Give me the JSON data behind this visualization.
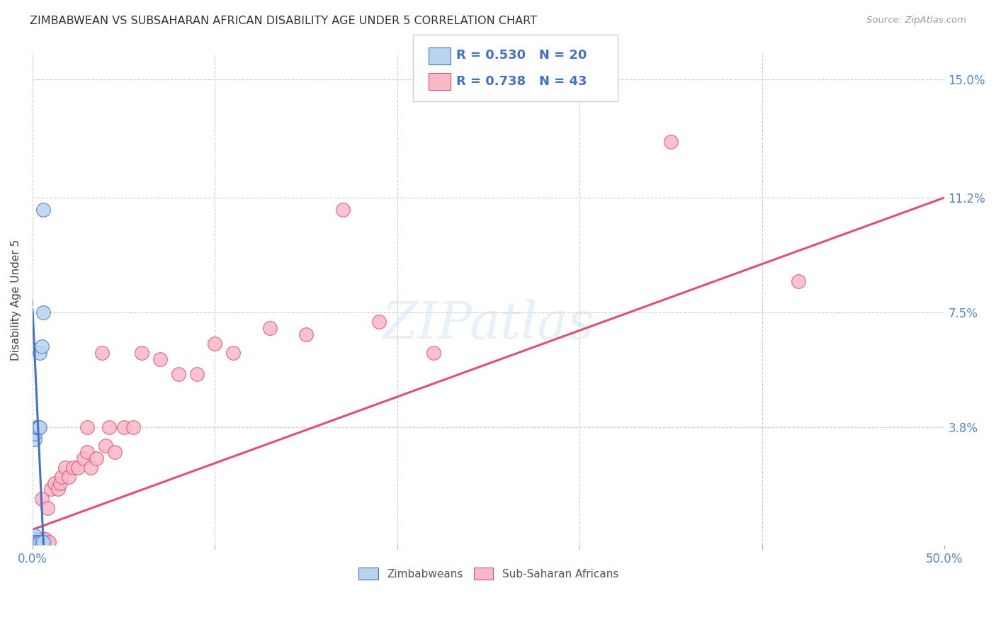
{
  "title": "ZIMBABWEAN VS SUBSAHARAN AFRICAN DISABILITY AGE UNDER 5 CORRELATION CHART",
  "source": "Source: ZipAtlas.com",
  "ylabel": "Disability Age Under 5",
  "xlim": [
    0,
    0.5
  ],
  "ylim": [
    0,
    0.158
  ],
  "xtick_positions": [
    0.0,
    0.1,
    0.2,
    0.3,
    0.4,
    0.5
  ],
  "ytick_positions": [
    0.0,
    0.038,
    0.075,
    0.112,
    0.15
  ],
  "ytick_labels": [
    "",
    "3.8%",
    "7.5%",
    "11.2%",
    "15.0%"
  ],
  "grid_color": "#cccccc",
  "background_color": "#ffffff",
  "zimbabwean_color": "#b8d4ef",
  "subsaharan_color": "#f9b8c8",
  "trend_blue": "#4472c4",
  "trend_pink": "#e05070",
  "R_zim": 0.53,
  "N_zim": 20,
  "R_sub": 0.738,
  "N_sub": 43,
  "legend_entries": [
    "Zimbabweans",
    "Sub-Saharan Africans"
  ],
  "zim_x": [
    0.001,
    0.001,
    0.001,
    0.001,
    0.001,
    0.001,
    0.001,
    0.001,
    0.002,
    0.002,
    0.003,
    0.003,
    0.004,
    0.004,
    0.004,
    0.005,
    0.005,
    0.006,
    0.006,
    0.006
  ],
  "zim_y": [
    0.001,
    0.001,
    0.001,
    0.002,
    0.003,
    0.034,
    0.036,
    0.001,
    0.001,
    0.038,
    0.038,
    0.001,
    0.001,
    0.038,
    0.062,
    0.064,
    0.001,
    0.075,
    0.108,
    0.001
  ],
  "sub_x": [
    0.001,
    0.002,
    0.003,
    0.004,
    0.005,
    0.005,
    0.006,
    0.007,
    0.008,
    0.009,
    0.01,
    0.012,
    0.014,
    0.015,
    0.016,
    0.018,
    0.02,
    0.022,
    0.025,
    0.028,
    0.03,
    0.03,
    0.032,
    0.035,
    0.038,
    0.04,
    0.042,
    0.045,
    0.05,
    0.055,
    0.06,
    0.07,
    0.08,
    0.09,
    0.1,
    0.11,
    0.13,
    0.15,
    0.17,
    0.19,
    0.22,
    0.35,
    0.42
  ],
  "sub_y": [
    0.001,
    0.001,
    0.001,
    0.002,
    0.001,
    0.015,
    0.002,
    0.002,
    0.012,
    0.001,
    0.018,
    0.02,
    0.018,
    0.02,
    0.022,
    0.025,
    0.022,
    0.025,
    0.025,
    0.028,
    0.03,
    0.038,
    0.025,
    0.028,
    0.062,
    0.032,
    0.038,
    0.03,
    0.038,
    0.038,
    0.062,
    0.06,
    0.055,
    0.055,
    0.065,
    0.062,
    0.07,
    0.068,
    0.108,
    0.072,
    0.062,
    0.13,
    0.085
  ],
  "zim_trend_x0": 0.0,
  "zim_trend_y0": 0.076,
  "zim_trend_x1": 0.006,
  "zim_trend_y1": 0.0,
  "sub_trend_x0": 0.0,
  "sub_trend_y0": 0.005,
  "sub_trend_x1": 0.5,
  "sub_trend_y1": 0.112
}
